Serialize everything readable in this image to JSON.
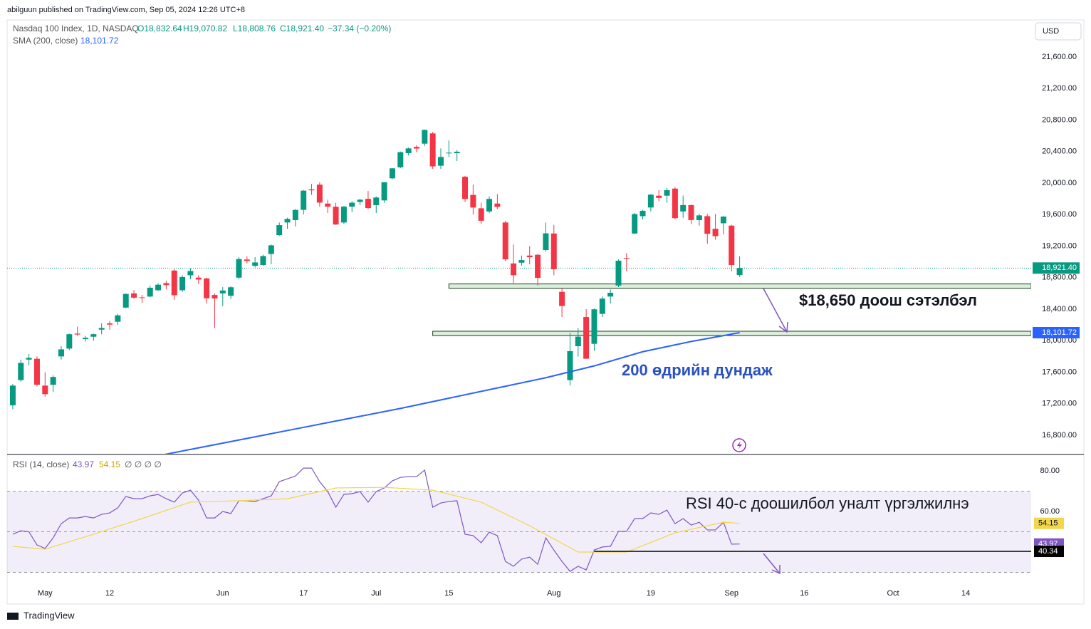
{
  "header": {
    "publisher": "abilguun published on TradingView.com, Sep 05, 2024 12:26 UTC+8",
    "footer": "TradingView",
    "currency": "USD"
  },
  "chart_data": [
    {
      "type": "candlestick",
      "title": "Nasdaq 100 Index, 1D, NASDAQ",
      "legend": {
        "open": "O18,832.64",
        "high": "H19,070.82",
        "low": "L18,808.76",
        "close": "C18,921.40",
        "change": "−37.34 (−0.20%)"
      },
      "up_color": "#089981",
      "down_color": "#f23645",
      "open": [
        17180,
        17500,
        17760,
        17770,
        17430,
        17440,
        17800,
        17900,
        18090,
        18020,
        18050,
        18140,
        18220,
        18240,
        18420,
        18600,
        18550,
        18560,
        18640,
        18730,
        18890,
        18640,
        18830,
        18800,
        18790,
        18580,
        18600,
        18570,
        18800,
        19030,
        18950,
        18960,
        19100,
        19340,
        19500,
        19530,
        19660,
        19920,
        19980,
        19740,
        19700,
        19500,
        19700,
        19760,
        19800,
        19720,
        19780,
        20060,
        20200,
        20380,
        20460,
        20500,
        20630,
        20220,
        20380,
        20380,
        20080,
        19850,
        19680,
        19640,
        19740,
        19500,
        18980,
        18990,
        19080,
        19090,
        19150,
        19360,
        18620,
        17500,
        17930,
        18300,
        17960,
        18340,
        18560,
        18700,
        19050,
        19360,
        19580,
        19690,
        19840,
        19840,
        19930,
        19640,
        19720,
        19530,
        19580,
        19420,
        19490,
        19460,
        18832.64
      ],
      "high": [
        17450,
        17760,
        17830,
        17800,
        17600,
        17560,
        17930,
        18090,
        18180,
        18060,
        18090,
        18220,
        18250,
        18340,
        18600,
        18640,
        18580,
        18700,
        18730,
        18760,
        18910,
        18830,
        18920,
        18830,
        18800,
        18600,
        18680,
        18690,
        19060,
        19070,
        19060,
        19090,
        19220,
        19500,
        19560,
        19670,
        19910,
        19990,
        20010,
        19790,
        19750,
        19710,
        19770,
        19800,
        19900,
        19830,
        20010,
        20190,
        20400,
        20450,
        20480,
        20680,
        20650,
        20440,
        20540,
        20420,
        20090,
        19980,
        19750,
        19830,
        19860,
        19520,
        19220,
        19080,
        19200,
        19100,
        19500,
        19470,
        18660,
        18100,
        18160,
        18400,
        18410,
        18560,
        18650,
        19030,
        19110,
        19620,
        19660,
        19860,
        19910,
        19940,
        19950,
        19840,
        19730,
        19610,
        19610,
        19610,
        19580,
        19470,
        19070.82
      ],
      "low": [
        17130,
        17480,
        17690,
        17420,
        17290,
        17350,
        17760,
        17880,
        18060,
        17990,
        18000,
        18080,
        18140,
        18200,
        18410,
        18530,
        18480,
        18550,
        18630,
        18650,
        18520,
        18620,
        18780,
        18720,
        18470,
        18160,
        18440,
        18530,
        18780,
        18980,
        18930,
        18950,
        18970,
        19330,
        19420,
        19450,
        19600,
        19850,
        19700,
        19620,
        19470,
        19480,
        19630,
        19720,
        19670,
        19620,
        19750,
        20050,
        20190,
        20350,
        20390,
        20470,
        20180,
        20180,
        20330,
        20280,
        19760,
        19600,
        19480,
        19620,
        19670,
        19010,
        18730,
        18950,
        18970,
        18700,
        19130,
        18830,
        18300,
        17430,
        17800,
        17770,
        17870,
        18300,
        18470,
        18680,
        18880,
        19350,
        19540,
        19640,
        19770,
        19750,
        19540,
        19560,
        19480,
        19460,
        19230,
        19280,
        19350,
        18880,
        18808.76
      ],
      "close": [
        17430,
        17718,
        17782,
        17441,
        17321,
        17540,
        17890,
        18082,
        18078,
        18037,
        18082,
        18161,
        18204,
        18322,
        18593,
        18546,
        18546,
        18672,
        18710,
        18705,
        18576,
        18808,
        18884,
        18776,
        18538,
        18536,
        18637,
        18678,
        19036,
        19012,
        18993,
        19074,
        19210,
        19466,
        19545,
        19659,
        19904,
        19908,
        19752,
        19700,
        19474,
        19701,
        19751,
        19789,
        19683,
        19817,
        20011,
        20187,
        20392,
        20440,
        20438,
        20675,
        20212,
        20331,
        20386,
        20398,
        19798,
        19689,
        19522,
        19799,
        19698,
        19032,
        18830,
        19023,
        19059,
        18797,
        19362,
        18907,
        18440,
        17867,
        18051,
        17771,
        18398,
        18534,
        18608,
        19015,
        19042,
        19607,
        19648,
        19853,
        19812,
        19910,
        19555,
        19721,
        19531,
        19590,
        19356,
        19326,
        19575,
        18960,
        18921.4
      ],
      "last_label": "18,921.40",
      "sma": {
        "name": "SMA (200, close)",
        "color": "#2962ff",
        "value_label": "18,101.72",
        "x": [
          18,
          24,
          30,
          36,
          42,
          48,
          54,
          60,
          66,
          72,
          78,
          84,
          90
        ],
        "values": [
          16540,
          16660,
          16780,
          16900,
          17020,
          17140,
          17270,
          17400,
          17530,
          17680,
          17860,
          17990,
          18101.72
        ]
      },
      "zones": [
        {
          "start": 54,
          "low": 18665,
          "high": 18720
        },
        {
          "start": 52,
          "low": 18065,
          "high": 18120
        }
      ],
      "annotations": [
        "$18,650 доош сэтэлбэл",
        "200 өдрийн дундаж"
      ],
      "xlim": [
        -0.7,
        126.1
      ],
      "xticks": [
        {
          "value": 4,
          "label": "May"
        },
        12,
        {
          "value": 26,
          "label": "Jun"
        },
        {
          "value": 36,
          "label": "17"
        },
        {
          "value": 45,
          "label": "Jul"
        },
        {
          "value": 54,
          "label": "15"
        },
        {
          "value": 67,
          "label": "Aug"
        },
        {
          "value": 79,
          "label": "19"
        },
        {
          "value": 89,
          "label": "Sep"
        },
        {
          "value": 98,
          "label": "16"
        },
        {
          "value": 109,
          "label": "Oct"
        },
        {
          "value": 118,
          "label": "14"
        }
      ],
      "ylim": [
        16565,
        22052
      ],
      "yticks": [
        {
          "value": 16800,
          "label": "16,800.00"
        },
        {
          "value": 17200,
          "label": "17,200.00"
        },
        {
          "value": 17600,
          "label": "17,600.00"
        },
        {
          "value": 18000,
          "label": "18,000.00"
        },
        {
          "value": 18400,
          "label": "18,400.00"
        },
        {
          "value": 18800,
          "label": "18,800.00"
        },
        {
          "value": 19200,
          "label": "19,200.00"
        },
        {
          "value": 19600,
          "label": "19,600.00"
        },
        {
          "value": 20000,
          "label": "20,000.00"
        },
        {
          "value": 20400,
          "label": "20,400.00"
        },
        {
          "value": 20800,
          "label": "20,800.00"
        },
        {
          "value": 21200,
          "label": "21,200.00"
        },
        {
          "value": 21600,
          "label": "21,600.00"
        }
      ],
      "grid": false
    },
    {
      "type": "line",
      "title": "RSI (14, close)",
      "extra": "∅ ∅ ∅ ∅",
      "series": [
        {
          "name": "43.97",
          "color": "#7e57c2",
          "values": [
            48.8,
            50.5,
            50,
            43.5,
            41.8,
            47,
            54,
            56.8,
            56.8,
            57.5,
            56.8,
            58.6,
            59.3,
            61.8,
            67.4,
            66.3,
            66.3,
            67.7,
            68.4,
            66.3,
            64.6,
            69.1,
            70.5,
            65.6,
            56.8,
            56.8,
            60,
            59,
            65.3,
            65.3,
            64.9,
            66.3,
            67.7,
            74.7,
            76.1,
            77.5,
            81.4,
            81.4,
            74.7,
            69.8,
            62.1,
            68.4,
            68.8,
            69.8,
            64.6,
            69.8,
            71.6,
            75.1,
            76.8,
            77.2,
            77.2,
            80.4,
            62.1,
            64.2,
            64.9,
            65.3,
            48.8,
            48.1,
            44.6,
            49.8,
            48.1,
            35.4,
            33,
            36.5,
            37.5,
            34,
            47,
            41,
            35.4,
            30.5,
            33,
            31.2,
            41,
            42.5,
            42.8,
            50.2,
            50.2,
            56.5,
            56.5,
            59.3,
            58.6,
            60.7,
            54,
            56.5,
            53.3,
            54.7,
            50.9,
            50.9,
            54.7,
            43.9,
            43.97
          ]
        },
        {
          "name": "54.15",
          "color": "#f2d64b",
          "x": [
            0,
            4,
            10,
            16,
            22,
            28,
            34,
            40,
            46,
            52,
            58,
            64,
            70,
            76,
            82,
            88,
            90
          ],
          "values": [
            42.8,
            41.4,
            48.8,
            56.5,
            64.6,
            65.3,
            66.3,
            71.6,
            71.9,
            70.5,
            64.6,
            53,
            40,
            40,
            49.5,
            54.7,
            54.15
          ]
        }
      ],
      "band": [
        30,
        70
      ],
      "levels": [
        70,
        50,
        30
      ],
      "marker": {
        "value": 40.34,
        "start": 72,
        "label": "40.34"
      },
      "annotation": "RSI 40-с доошилбол уналт үргэлжилнэ",
      "ylim": [
        24.2,
        87.4
      ],
      "yticks": [
        {
          "value": 60,
          "label": "60.00"
        },
        {
          "value": 80,
          "label": "80.00"
        }
      ]
    }
  ]
}
